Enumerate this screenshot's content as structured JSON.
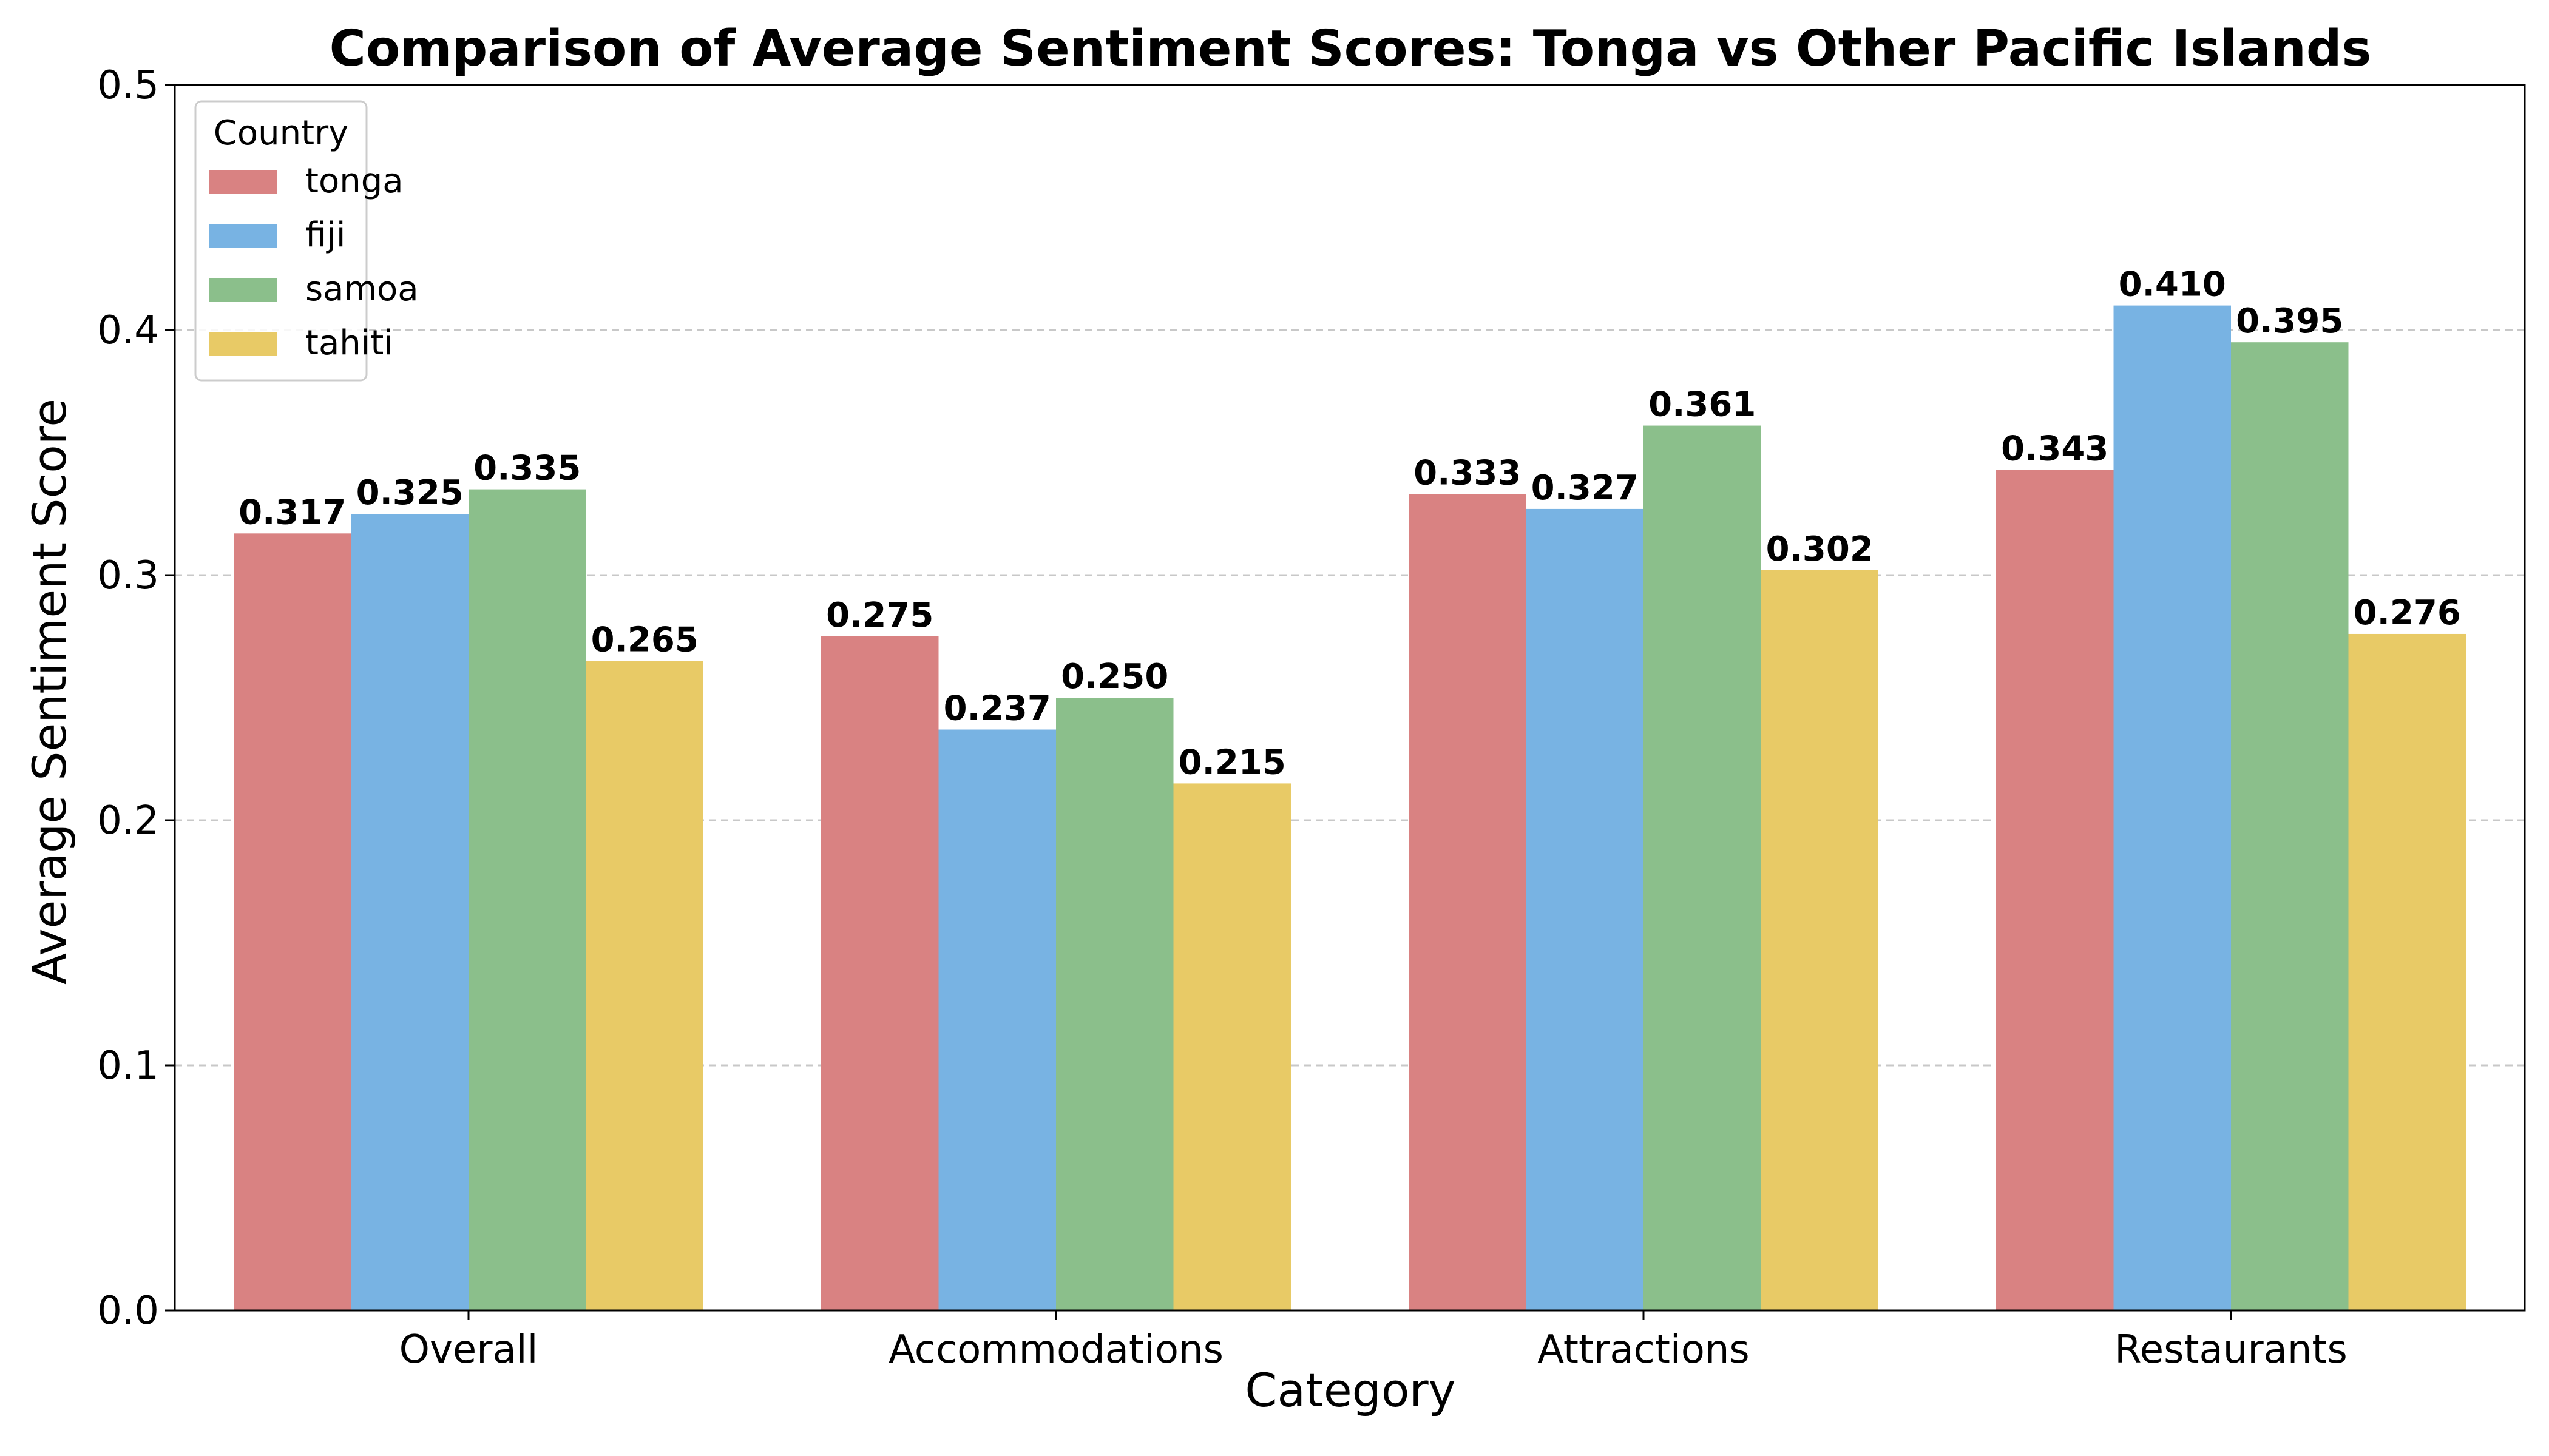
{
  "chart_data": {
    "type": "bar",
    "title": "Comparison of Average Sentiment Scores: Tonga vs Other Pacific Islands",
    "xlabel": "Category",
    "ylabel": "Average Sentiment Score",
    "categories": [
      "Overall",
      "Accommodations",
      "Attractions",
      "Restaurants"
    ],
    "series": [
      {
        "name": "tonga",
        "color": "#d98282",
        "values": [
          0.317,
          0.275,
          0.333,
          0.343
        ],
        "labels": [
          "0.317",
          "0.275",
          "0.333",
          "0.343"
        ]
      },
      {
        "name": "fiji",
        "color": "#78b3e3",
        "values": [
          0.325,
          0.237,
          0.327,
          0.41
        ],
        "labels": [
          "0.325",
          "0.237",
          "0.327",
          "0.410"
        ]
      },
      {
        "name": "samoa",
        "color": "#8bbf8b",
        "values": [
          0.335,
          0.25,
          0.361,
          0.395
        ],
        "labels": [
          "0.335",
          "0.250",
          "0.361",
          "0.395"
        ]
      },
      {
        "name": "tahiti",
        "color": "#e8ca66",
        "values": [
          0.265,
          0.215,
          0.302,
          0.276
        ],
        "labels": [
          "0.265",
          "0.215",
          "0.302",
          "0.276"
        ]
      }
    ],
    "ylim": [
      0,
      0.5
    ],
    "yticks": [
      0.0,
      0.1,
      0.2,
      0.3,
      0.4,
      0.5
    ],
    "ytick_labels": [
      "0.0",
      "0.1",
      "0.2",
      "0.3",
      "0.4",
      "0.5"
    ],
    "grid": "y-dashed",
    "legend": {
      "title": "Country",
      "placement": "top-left"
    }
  }
}
